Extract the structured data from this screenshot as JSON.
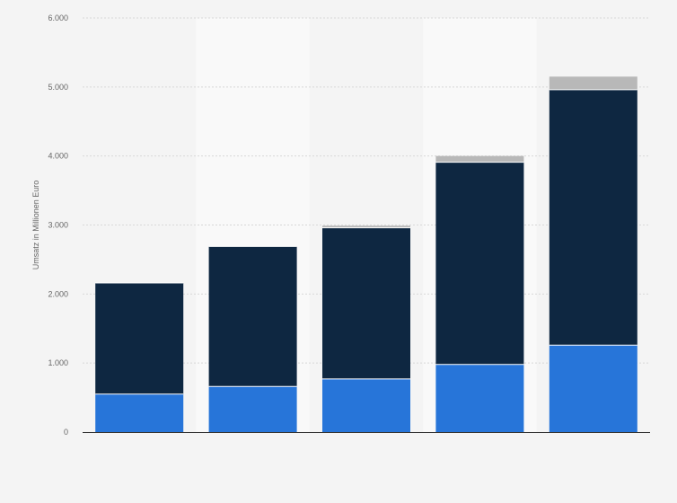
{
  "chart_data": {
    "type": "bar",
    "stacked": true,
    "title": "",
    "xlabel": "",
    "ylabel": "Umsatz in Millionen Euro",
    "ylim": [
      0,
      6000
    ],
    "yticks": [
      0,
      1000,
      2000,
      3000,
      4000,
      5000,
      6000
    ],
    "ytick_labels": [
      "0",
      "1.000",
      "2.000",
      "3.000",
      "4.000",
      "5.000",
      "6.000"
    ],
    "categories": [
      "",
      "",
      "",
      "",
      ""
    ],
    "grid": true,
    "legend": "none",
    "series": [
      {
        "color": "#2775d9",
        "values": [
          550,
          660,
          770,
          980,
          1260
        ]
      },
      {
        "color": "#0e2741",
        "values": [
          1610,
          2030,
          2190,
          2930,
          3700
        ]
      },
      {
        "color": "#b8b8b8",
        "values": [
          0,
          0,
          30,
          90,
          190
        ]
      }
    ],
    "colors": {
      "background": "#f4f4f4",
      "band": "#f9f9f9",
      "grid": "#d8d8d8",
      "axis": "#333333",
      "segment_separator": "#ffffff"
    }
  }
}
